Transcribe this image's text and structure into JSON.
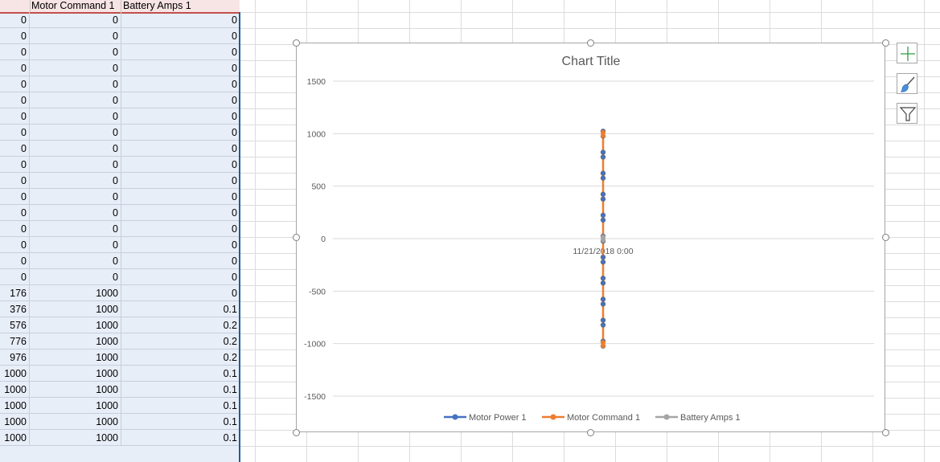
{
  "spreadsheet": {
    "headers": [
      "",
      "Motor Command 1",
      "Battery Amps 1"
    ],
    "rows": [
      [
        "0",
        "0",
        "0"
      ],
      [
        "0",
        "0",
        "0"
      ],
      [
        "0",
        "0",
        "0"
      ],
      [
        "0",
        "0",
        "0"
      ],
      [
        "0",
        "0",
        "0"
      ],
      [
        "0",
        "0",
        "0"
      ],
      [
        "0",
        "0",
        "0"
      ],
      [
        "0",
        "0",
        "0"
      ],
      [
        "0",
        "0",
        "0"
      ],
      [
        "0",
        "0",
        "0"
      ],
      [
        "0",
        "0",
        "0"
      ],
      [
        "0",
        "0",
        "0"
      ],
      [
        "0",
        "0",
        "0"
      ],
      [
        "0",
        "0",
        "0"
      ],
      [
        "0",
        "0",
        "0"
      ],
      [
        "0",
        "0",
        "0"
      ],
      [
        "0",
        "0",
        "0"
      ],
      [
        "176",
        "1000",
        "0"
      ],
      [
        "376",
        "1000",
        "0.1"
      ],
      [
        "576",
        "1000",
        "0.2"
      ],
      [
        "776",
        "1000",
        "0.2"
      ],
      [
        "976",
        "1000",
        "0.2"
      ],
      [
        "1000",
        "1000",
        "0.1"
      ],
      [
        "1000",
        "1000",
        "0.1"
      ],
      [
        "1000",
        "1000",
        "0.1"
      ],
      [
        "1000",
        "1000",
        "0.1"
      ],
      [
        "1000",
        "1000",
        "0.1"
      ]
    ]
  },
  "chart_data": {
    "type": "line",
    "title": "Chart Title",
    "x_label": "11/21/2018 0:00",
    "ylim": [
      -1500,
      1500
    ],
    "yticks": [
      1500,
      1000,
      500,
      0,
      -500,
      -1000,
      -1500
    ],
    "grid": true,
    "legend_position": "bottom",
    "series": [
      {
        "name": "Motor Power 1",
        "color": "#4472c4",
        "values": [
          1000,
          800,
          600,
          400,
          200,
          0,
          -200,
          -400,
          -600,
          -800,
          -1000
        ]
      },
      {
        "name": "Motor Command 1",
        "color": "#ed7d31",
        "values": [
          1000,
          1000,
          -1000,
          -1000
        ]
      },
      {
        "name": "Battery Amps 1",
        "color": "#a5a5a5",
        "values": [
          0,
          0.1,
          0.2,
          0.2,
          0.2,
          0.1,
          0.1,
          0.1
        ]
      }
    ]
  },
  "chart_tools": {
    "elements_icon": "plus-icon",
    "styles_icon": "brush-icon",
    "filter_icon": "filter-icon"
  }
}
